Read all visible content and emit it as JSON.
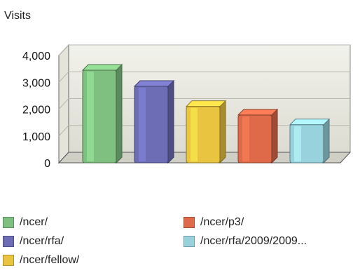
{
  "chart_data": {
    "type": "bar",
    "ylabel": "Visits",
    "ylim": [
      0,
      4000
    ],
    "yticks": [
      "4,000",
      "3,000",
      "2,000",
      "1,000",
      "0"
    ],
    "tick_values": [
      4000,
      3000,
      2000,
      1000,
      0
    ],
    "grid": true,
    "legend_position": "bottom",
    "categories": [
      "/ncer/",
      "/ncer/rfa/",
      "/ncer/fellow/",
      "/ncer/p3/",
      "/ncer/rfa/2009/2009..."
    ],
    "values": [
      3450,
      2850,
      2100,
      1780,
      1420
    ],
    "colors": [
      "#7fbf80",
      "#6d6db5",
      "#e8c440",
      "#de6a4a",
      "#98d2dd"
    ]
  }
}
